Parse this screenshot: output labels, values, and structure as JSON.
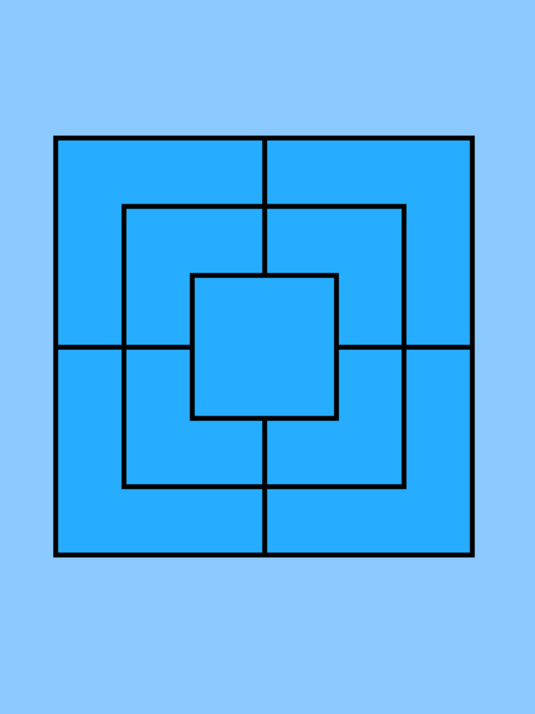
{
  "game": {
    "name": "",
    "board_type": "nine-mens-morris",
    "rings": [
      "outer",
      "middle",
      "inner"
    ],
    "connector_lines": [
      "top",
      "bottom",
      "left",
      "right"
    ]
  },
  "colors": {
    "background": "#8cc9ff",
    "board_fill": "#27adff",
    "line": "#000000"
  }
}
